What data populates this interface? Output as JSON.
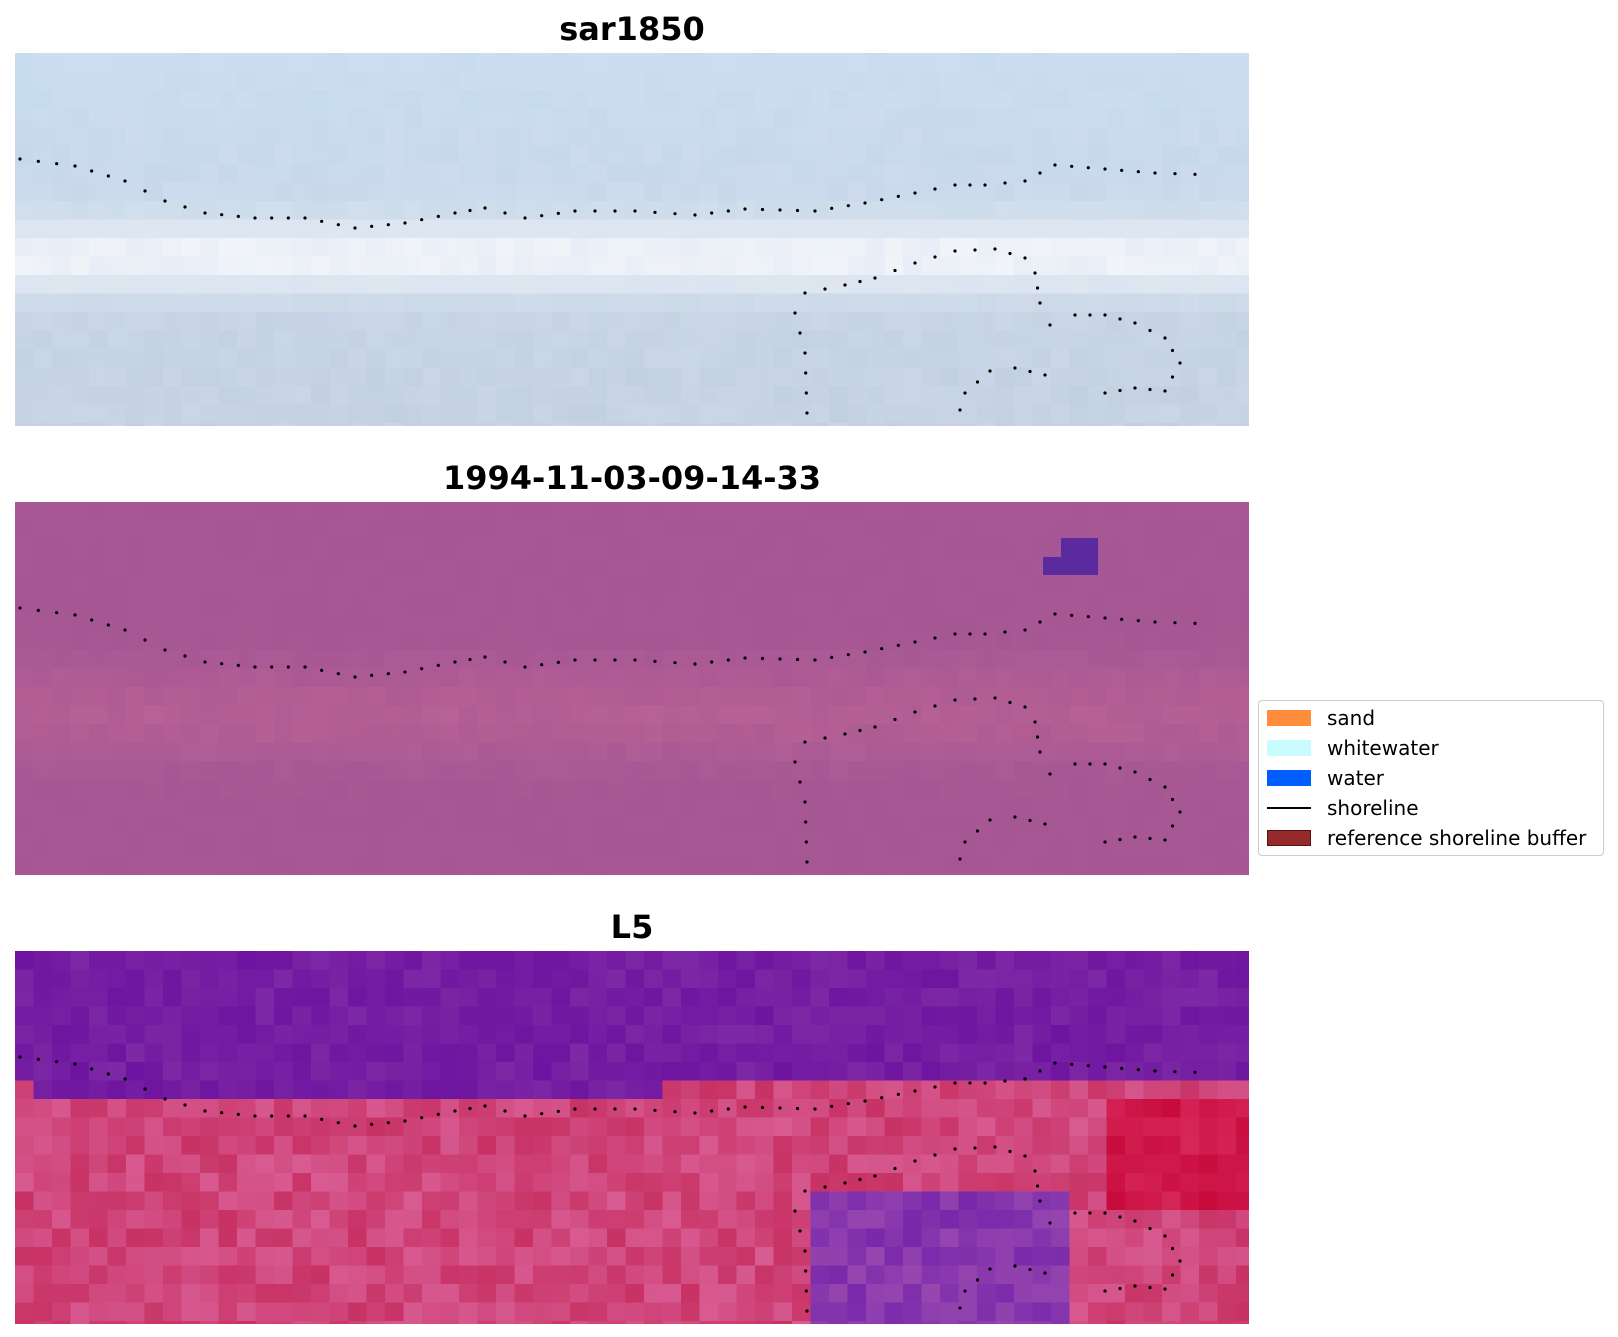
{
  "panels": [
    {
      "title": "sar1850",
      "palette": "sar"
    },
    {
      "title": "1994-11-03-09-14-33",
      "palette": "class"
    },
    {
      "title": "L5",
      "palette": "index"
    }
  ],
  "legend": {
    "items": [
      {
        "label": "sand",
        "type": "patch",
        "color": "#ff8c3a"
      },
      {
        "label": "whitewater",
        "type": "patch",
        "color": "#c8fcff"
      },
      {
        "label": "water",
        "type": "patch",
        "color": "#005eff"
      },
      {
        "label": "shoreline",
        "type": "line",
        "color": "#000000"
      },
      {
        "label": "reference shoreline buffer",
        "type": "patch",
        "color": "#962a2a"
      }
    ]
  }
}
